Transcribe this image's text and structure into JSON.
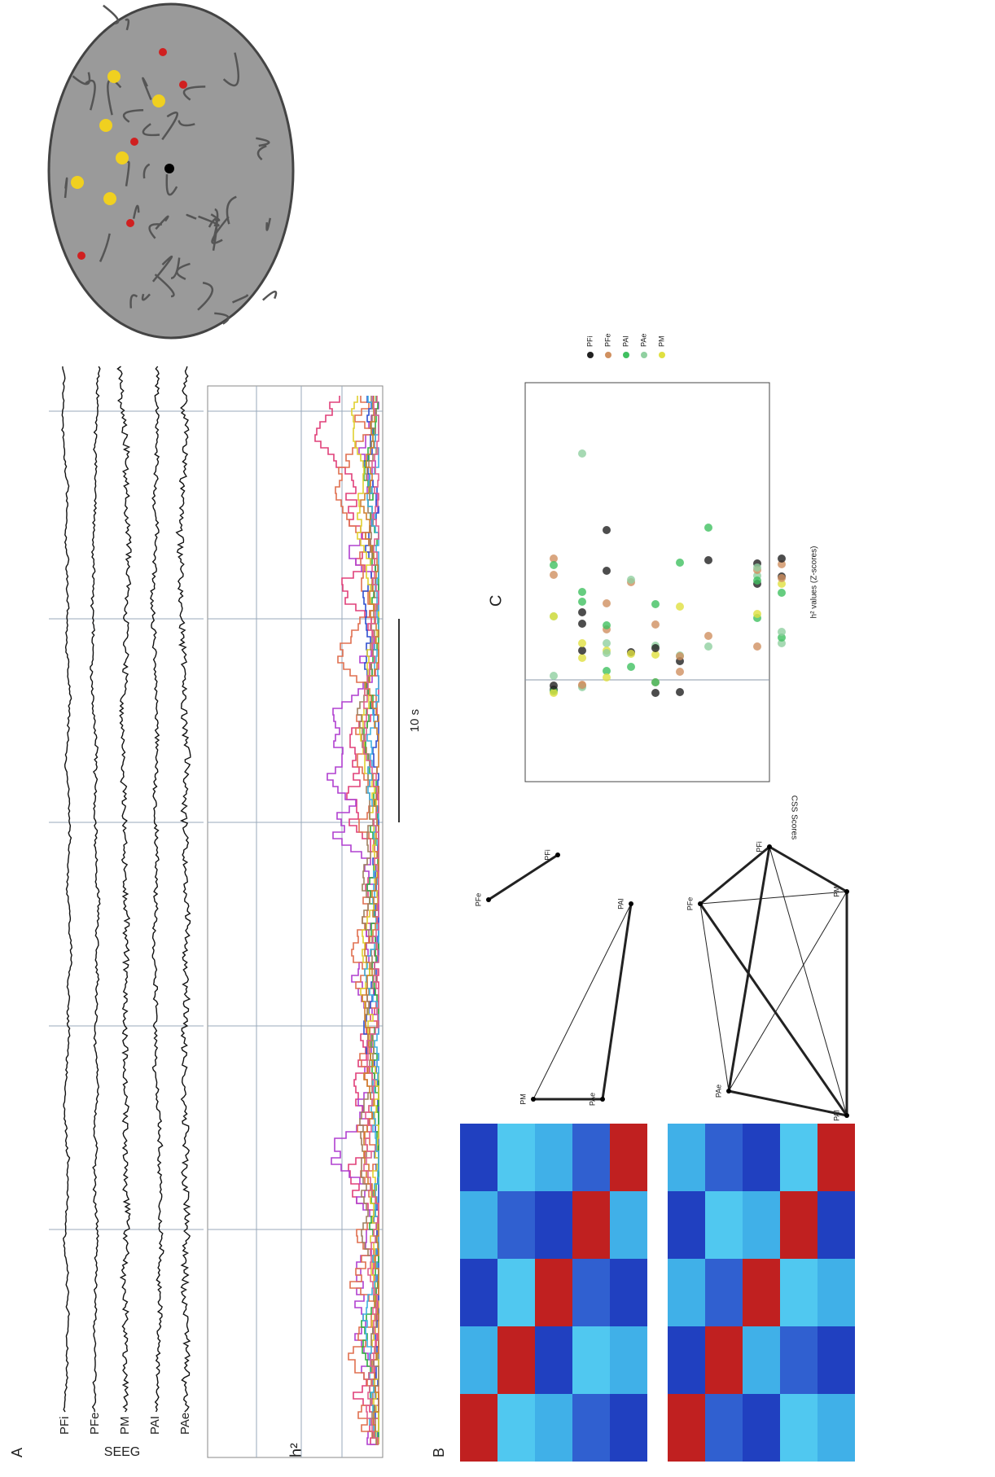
{
  "panels": {
    "a": {
      "label": "A",
      "seeg_label": "SEEG",
      "channels": [
        "PFi",
        "PFe",
        "PM",
        "PAI",
        "PAe"
      ],
      "h2_label": "h²",
      "scale_bar": "10 s"
    },
    "b": {
      "label": "B",
      "networks": [
        {
          "nodes": [
            "PFe",
            "PFi"
          ]
        },
        {
          "nodes": [
            "PM",
            "PAe",
            "PAI"
          ]
        },
        {
          "nodes": [
            "PFe",
            "PFi",
            "PM",
            "PAI",
            "PAe"
          ]
        }
      ]
    },
    "c": {
      "label": "C",
      "y_title": "CSS Scores",
      "x_title": "h² values (Z-scores)",
      "legend": [
        "PFi",
        "PFe",
        "PAI",
        "PAe",
        "PM"
      ]
    }
  }
}
